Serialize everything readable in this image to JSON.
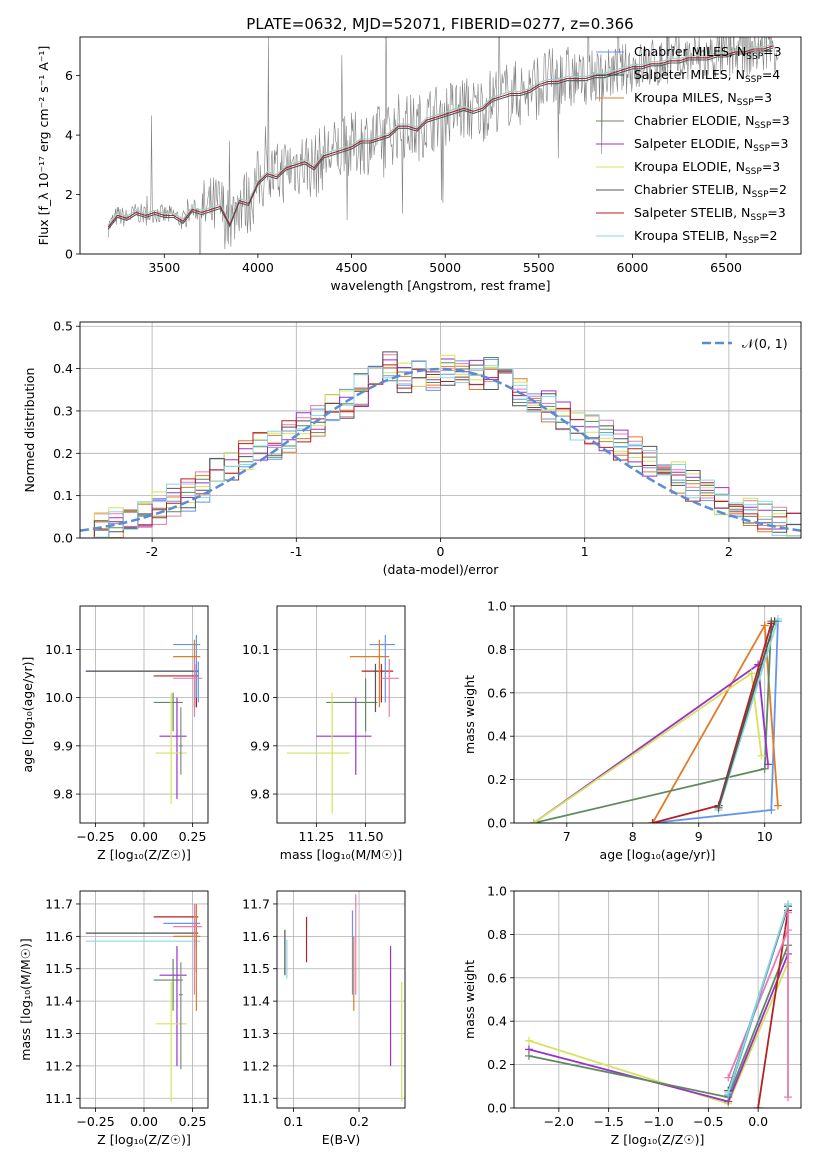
{
  "figure": {
    "title": "PLATE=0632, MJD=52071, FIBERID=0277, z=0.366"
  },
  "models": [
    {
      "name": "Chabrier MILES",
      "nssp": 3,
      "color": "#6495ed"
    },
    {
      "name": "Salpeter MILES",
      "nssp": 4,
      "color": "#2f4f4f"
    },
    {
      "name": "Kroupa MILES",
      "nssp": 3,
      "color": "#e07b28"
    },
    {
      "name": "Chabrier ELODIE",
      "nssp": 3,
      "color": "#5f8a5f"
    },
    {
      "name": "Salpeter ELODIE",
      "nssp": 3,
      "color": "#9932cc"
    },
    {
      "name": "Kroupa ELODIE",
      "nssp": 3,
      "color": "#d4e35a"
    },
    {
      "name": "Chabrier STELIB",
      "nssp": 2,
      "color": "#555555"
    },
    {
      "name": "Salpeter STELIB",
      "nssp": 3,
      "color": "#b22222"
    },
    {
      "name": "Kroupa STELIB",
      "nssp": 2,
      "color": "#88d8e0"
    }
  ],
  "chart_data": [
    {
      "id": "spectrum",
      "type": "line",
      "xlabel": "wavelength [Angstrom, rest frame]",
      "ylabel": "Flux [f_λ 10⁻¹⁷ erg cm⁻² s⁻¹ A⁻¹]",
      "xlim": [
        3050,
        6900
      ],
      "ylim": [
        0,
        7.3
      ],
      "xticks": [
        3500,
        4000,
        4500,
        5000,
        5500,
        6000,
        6500
      ],
      "yticks": [
        0,
        2,
        4,
        6
      ],
      "legend_position": "top-right",
      "data_color": "#808080",
      "model_x": [
        3200,
        3250,
        3300,
        3350,
        3400,
        3450,
        3500,
        3550,
        3600,
        3650,
        3700,
        3750,
        3800,
        3850,
        3900,
        3950,
        4000,
        4050,
        4100,
        4150,
        4200,
        4250,
        4300,
        4350,
        4400,
        4450,
        4500,
        4550,
        4600,
        4650,
        4700,
        4750,
        4800,
        4850,
        4900,
        4950,
        5000,
        5050,
        5100,
        5150,
        5200,
        5250,
        5300,
        5350,
        5400,
        5450,
        5500,
        5550,
        5600,
        5650,
        5700,
        5750,
        5800,
        5850,
        5900,
        5950,
        6000,
        6050,
        6100,
        6150,
        6200,
        6250,
        6300,
        6350,
        6400,
        6450,
        6500,
        6550,
        6600,
        6650,
        6700,
        6750
      ],
      "model_y": [
        0.9,
        1.3,
        1.2,
        1.4,
        1.3,
        1.4,
        1.3,
        1.3,
        1.1,
        1.5,
        1.4,
        1.5,
        1.6,
        1.0,
        1.8,
        1.7,
        2.4,
        2.7,
        2.6,
        2.9,
        3.0,
        3.1,
        2.9,
        3.3,
        3.4,
        3.5,
        3.6,
        3.8,
        3.8,
        3.9,
        4.0,
        4.3,
        4.3,
        4.2,
        4.5,
        4.6,
        4.7,
        4.8,
        4.9,
        4.8,
        4.9,
        5.2,
        5.3,
        5.4,
        5.4,
        5.5,
        5.7,
        5.8,
        5.8,
        5.9,
        5.9,
        5.9,
        6.0,
        6.0,
        6.1,
        6.2,
        6.3,
        6.3,
        6.4,
        6.4,
        6.5,
        6.5,
        6.6,
        6.6,
        6.6,
        6.7,
        6.7,
        6.8,
        6.8,
        6.9,
        6.9,
        7.0
      ]
    },
    {
      "id": "residuals",
      "type": "line",
      "xlabel": "(data-model)/error",
      "ylabel": "Normed distribution",
      "xlim": [
        -2.5,
        2.5
      ],
      "ylim": [
        0,
        0.51
      ],
      "xticks": [
        -2,
        -1,
        0,
        1,
        2
      ],
      "yticks": [
        0.0,
        0.1,
        0.2,
        0.3,
        0.4,
        0.5
      ],
      "legend": "𝒩(0, 1)",
      "legend_position": "top-right",
      "gauss_color": "#5b8bd8",
      "hist_bin_edges": [
        -2.5,
        -2.4,
        -2.3,
        -2.2,
        -2.1,
        -2.0,
        -1.9,
        -1.8,
        -1.7,
        -1.6,
        -1.5,
        -1.4,
        -1.3,
        -1.2,
        -1.1,
        -1.0,
        -0.9,
        -0.8,
        -0.7,
        -0.6,
        -0.5,
        -0.4,
        -0.3,
        -0.2,
        -0.1,
        0.0,
        0.1,
        0.2,
        0.3,
        0.4,
        0.5,
        0.6,
        0.7,
        0.8,
        0.9,
        1.0,
        1.1,
        1.2,
        1.3,
        1.4,
        1.5,
        1.6,
        1.7,
        1.8,
        1.9,
        2.0,
        2.1,
        2.2,
        2.3,
        2.4,
        2.5
      ],
      "hist_mean_heights": [
        0.02,
        0.03,
        0.04,
        0.05,
        0.05,
        0.07,
        0.09,
        0.1,
        0.12,
        0.15,
        0.17,
        0.2,
        0.21,
        0.22,
        0.24,
        0.26,
        0.28,
        0.3,
        0.32,
        0.35,
        0.37,
        0.4,
        0.38,
        0.39,
        0.37,
        0.4,
        0.39,
        0.38,
        0.39,
        0.37,
        0.35,
        0.33,
        0.31,
        0.29,
        0.27,
        0.26,
        0.24,
        0.22,
        0.2,
        0.18,
        0.16,
        0.14,
        0.12,
        0.1,
        0.08,
        0.07,
        0.06,
        0.05,
        0.04,
        0.03
      ]
    },
    {
      "id": "age_vs_Z",
      "type": "scatter",
      "xlabel": "Z [log₁₀(Z/Z☉)]",
      "ylabel": "age  [log₁₀(age/yr)]",
      "xlim": [
        -0.33,
        0.33
      ],
      "ylim": [
        9.74,
        10.19
      ],
      "xticks": [
        -0.25,
        0.0,
        0.25
      ],
      "xticklabels": [
        "−0.25",
        "0.00",
        "0.25"
      ],
      "yticks": [
        9.8,
        9.9,
        10.0,
        10.1
      ],
      "points": [
        {
          "x": 0.28,
          "xlo": -0.3,
          "xhi": 0.28,
          "y": 10.055,
          "ylo": 9.99,
          "yhi": 10.075,
          "c": "#6495ed"
        },
        {
          "x": 0.27,
          "xlo": -0.3,
          "xhi": 0.28,
          "y": 10.055,
          "ylo": 9.98,
          "yhi": 10.07,
          "c": "#555555"
        },
        {
          "x": 0.27,
          "xlo": 0.05,
          "xhi": 0.28,
          "y": 10.045,
          "ylo": 9.98,
          "yhi": 10.07,
          "c": "#b22222"
        },
        {
          "x": 0.27,
          "xlo": 0.15,
          "xhi": 0.29,
          "y": 10.11,
          "ylo": 10.0,
          "yhi": 10.13,
          "c": "#6495ed"
        },
        {
          "x": 0.26,
          "xlo": 0.15,
          "xhi": 0.29,
          "y": 10.085,
          "ylo": 9.98,
          "yhi": 10.12,
          "c": "#e07b28"
        },
        {
          "x": 0.26,
          "xlo": 0.15,
          "xhi": 0.3,
          "y": 10.04,
          "ylo": 9.96,
          "yhi": 10.08,
          "c": "#e87bb0"
        },
        {
          "x": 0.15,
          "xlo": 0.05,
          "xhi": 0.2,
          "y": 9.99,
          "ylo": 9.93,
          "yhi": 10.01,
          "c": "#5f8a5f"
        },
        {
          "x": 0.17,
          "xlo": 0.08,
          "xhi": 0.22,
          "y": 9.92,
          "ylo": 9.79,
          "yhi": 10.0,
          "c": "#9932cc"
        },
        {
          "x": 0.14,
          "xlo": 0.06,
          "xhi": 0.22,
          "y": 9.885,
          "ylo": 9.78,
          "yhi": 10.01,
          "c": "#d4e35a"
        },
        {
          "x": 0.19,
          "xlo": 0.18,
          "xhi": 0.2,
          "y": 9.9,
          "ylo": 9.84,
          "yhi": 9.98,
          "c": "#888888"
        }
      ]
    },
    {
      "id": "age_vs_mass",
      "type": "scatter",
      "xlabel": "mass [log₁₀(M/M☉)]",
      "ylabel": "",
      "xlim": [
        11.05,
        11.7
      ],
      "ylim": [
        9.74,
        10.19
      ],
      "xticks": [
        11.25,
        11.5
      ],
      "xticklabels": [
        "11.25",
        "11.50"
      ],
      "yticks": [
        9.8,
        9.9,
        10.0,
        10.1
      ],
      "points": [
        {
          "x": 11.58,
          "xlo": 11.48,
          "xhi": 11.64,
          "y": 10.055,
          "ylo": 9.99,
          "yhi": 10.07,
          "c": "#b22222"
        },
        {
          "x": 11.6,
          "xlo": 11.52,
          "xhi": 11.65,
          "y": 10.11,
          "ylo": 9.99,
          "yhi": 10.13,
          "c": "#6495ed"
        },
        {
          "x": 11.57,
          "xlo": 11.42,
          "xhi": 11.62,
          "y": 10.085,
          "ylo": 9.98,
          "yhi": 10.12,
          "c": "#e07b28"
        },
        {
          "x": 11.62,
          "xlo": 11.58,
          "xhi": 11.67,
          "y": 10.04,
          "ylo": 9.96,
          "yhi": 10.08,
          "c": "#e87bb0"
        },
        {
          "x": 11.5,
          "xlo": 11.3,
          "xhi": 11.56,
          "y": 9.99,
          "ylo": 9.93,
          "yhi": 10.04,
          "c": "#5f8a5f"
        },
        {
          "x": 11.45,
          "xlo": 11.25,
          "xhi": 11.53,
          "y": 9.92,
          "ylo": 9.84,
          "yhi": 10.0,
          "c": "#9932cc"
        },
        {
          "x": 11.33,
          "xlo": 11.1,
          "xhi": 11.42,
          "y": 9.885,
          "ylo": 9.76,
          "yhi": 10.01,
          "c": "#d4e35a"
        },
        {
          "x": 11.55,
          "xlo": 11.54,
          "xhi": 11.56,
          "y": 10.055,
          "ylo": 9.97,
          "yhi": 10.07,
          "c": "#555555"
        }
      ]
    },
    {
      "id": "mass_weight_vs_age",
      "type": "line",
      "xlabel": "age  [log₁₀(age/yr)]",
      "ylabel": "mass weight",
      "xlim": [
        6.2,
        10.55
      ],
      "ylim": [
        0,
        1.0
      ],
      "xticks": [
        7,
        8,
        9,
        10
      ],
      "yticks": [
        0.0,
        0.2,
        0.4,
        0.6,
        0.8,
        1.0
      ],
      "series": [
        {
          "c": "#6495ed",
          "x": [
            8.3,
            10.1,
            10.2
          ],
          "y": [
            0.0,
            0.06,
            0.93
          ]
        },
        {
          "c": "#e07b28",
          "x": [
            8.3,
            10.0,
            10.2
          ],
          "y": [
            0.0,
            0.91,
            0.08
          ]
        },
        {
          "c": "#5f8a5f",
          "x": [
            6.5,
            10.0,
            10.1
          ],
          "y": [
            0.0,
            0.25,
            0.93
          ]
        },
        {
          "c": "#9932cc",
          "x": [
            6.5,
            9.9,
            10.05
          ],
          "y": [
            0.0,
            0.73,
            0.27
          ]
        },
        {
          "c": "#d4e35a",
          "x": [
            6.5,
            9.8,
            9.95
          ],
          "y": [
            0.0,
            0.69,
            0.31
          ]
        },
        {
          "c": "#b22222",
          "x": [
            8.3,
            9.3,
            10.1
          ],
          "y": [
            0.0,
            0.08,
            0.92
          ]
        },
        {
          "c": "#88d8e0",
          "x": [
            9.3,
            10.2
          ],
          "y": [
            0.06,
            0.94
          ]
        },
        {
          "c": "#555555",
          "x": [
            9.3,
            10.15
          ],
          "y": [
            0.07,
            0.93
          ]
        }
      ]
    },
    {
      "id": "mass_vs_Z",
      "type": "scatter",
      "xlabel": "Z [log₁₀(Z/Z☉)]",
      "ylabel": "mass [log₁₀(M/M☉)]",
      "xlim": [
        -0.33,
        0.33
      ],
      "ylim": [
        11.07,
        11.74
      ],
      "xticks": [
        -0.25,
        0.0,
        0.25
      ],
      "xticklabels": [
        "−0.25",
        "0.00",
        "0.25"
      ],
      "yticks": [
        11.1,
        11.2,
        11.3,
        11.4,
        11.5,
        11.6,
        11.7
      ],
      "points": [
        {
          "x": 0.27,
          "xlo": -0.3,
          "xhi": 0.28,
          "y": 11.61,
          "ylo": 11.49,
          "yhi": 11.68,
          "c": "#555555"
        },
        {
          "x": 0.26,
          "xlo": -0.3,
          "xhi": 0.29,
          "y": 11.585,
          "ylo": 11.5,
          "yhi": 11.64,
          "c": "#88d8e0"
        },
        {
          "x": 0.27,
          "xlo": 0.05,
          "xhi": 0.28,
          "y": 11.66,
          "ylo": 11.56,
          "yhi": 11.7,
          "c": "#b22222"
        },
        {
          "x": 0.27,
          "xlo": 0.1,
          "xhi": 0.29,
          "y": 11.64,
          "ylo": 11.55,
          "yhi": 11.69,
          "c": "#6495ed"
        },
        {
          "x": 0.27,
          "xlo": 0.15,
          "xhi": 0.29,
          "y": 11.6,
          "ylo": 11.37,
          "yhi": 11.7,
          "c": "#e07b28"
        },
        {
          "x": 0.26,
          "xlo": 0.15,
          "xhi": 0.3,
          "y": 11.63,
          "ylo": 11.42,
          "yhi": 11.7,
          "c": "#e87bb0"
        },
        {
          "x": 0.15,
          "xlo": 0.05,
          "xhi": 0.2,
          "y": 11.465,
          "ylo": 11.37,
          "yhi": 11.53,
          "c": "#5f8a5f"
        },
        {
          "x": 0.17,
          "xlo": 0.08,
          "xhi": 0.22,
          "y": 11.48,
          "ylo": 11.2,
          "yhi": 11.57,
          "c": "#9932cc"
        },
        {
          "x": 0.14,
          "xlo": 0.06,
          "xhi": 0.22,
          "y": 11.33,
          "ylo": 11.09,
          "yhi": 11.46,
          "c": "#d4e35a"
        },
        {
          "x": 0.19,
          "xlo": 0.18,
          "xhi": 0.2,
          "y": 11.42,
          "ylo": 11.19,
          "yhi": 11.52,
          "c": "#888888"
        }
      ]
    },
    {
      "id": "mass_vs_EBV",
      "type": "scatter",
      "xlabel": "E(B-V)",
      "ylabel": "",
      "xlim": [
        0.075,
        0.27
      ],
      "ylim": [
        11.07,
        11.74
      ],
      "xticks": [
        0.1,
        0.2
      ],
      "xticklabels": [
        "0.1",
        "0.2"
      ],
      "yticks": [
        11.1,
        11.2,
        11.3,
        11.4,
        11.5,
        11.6,
        11.7
      ],
      "points": [
        {
          "x": 0.087,
          "ylo": 11.48,
          "yhi": 11.62,
          "c": "#555555"
        },
        {
          "x": 0.09,
          "ylo": 11.47,
          "yhi": 11.59,
          "c": "#88d8e0"
        },
        {
          "x": 0.12,
          "ylo": 11.52,
          "yhi": 11.66,
          "c": "#b22222"
        },
        {
          "x": 0.19,
          "ylo": 11.42,
          "yhi": 11.68,
          "c": "#6495ed"
        },
        {
          "x": 0.192,
          "ylo": 11.37,
          "yhi": 11.6,
          "c": "#e07b28"
        },
        {
          "x": 0.195,
          "ylo": 11.42,
          "yhi": 11.73,
          "c": "#e87bb0"
        },
        {
          "x": 0.248,
          "ylo": 11.2,
          "yhi": 11.57,
          "c": "#9932cc"
        },
        {
          "x": 0.265,
          "ylo": 11.09,
          "yhi": 11.46,
          "c": "#d4e35a"
        }
      ]
    },
    {
      "id": "mass_weight_vs_Z",
      "type": "line",
      "xlabel": "Z [log₁₀(Z/Z☉)]",
      "ylabel": "mass weight",
      "xlim": [
        -2.45,
        0.43
      ],
      "ylim": [
        0,
        1.0
      ],
      "xticks": [
        -2.0,
        -1.5,
        -1.0,
        -0.5,
        0.0
      ],
      "xticklabels": [
        "−2.0",
        "−1.5",
        "−1.0",
        "−0.5",
        "0.0"
      ],
      "yticks": [
        0.0,
        0.2,
        0.4,
        0.6,
        0.8,
        1.0
      ],
      "series": [
        {
          "c": "#d4e35a",
          "x": [
            -2.3,
            -0.3,
            0.3
          ],
          "y": [
            0.31,
            0.02,
            0.67
          ]
        },
        {
          "c": "#9932cc",
          "x": [
            -2.3,
            -0.3,
            0.3
          ],
          "y": [
            0.27,
            0.03,
            0.71
          ]
        },
        {
          "c": "#5f8a5f",
          "x": [
            -2.3,
            -0.3,
            0.3
          ],
          "y": [
            0.24,
            0.05,
            0.75
          ]
        },
        {
          "c": "#b22222",
          "x": [
            0.0,
            0.3
          ],
          "y": [
            0.0,
            0.91
          ]
        },
        {
          "c": "#e87bb0",
          "x": [
            -0.3,
            0.3
          ],
          "y": [
            0.14,
            0.82
          ]
        },
        {
          "c": "#6495ed",
          "x": [
            -0.3,
            0.3
          ],
          "y": [
            0.06,
            0.93
          ]
        },
        {
          "c": "#555555",
          "x": [
            -0.3,
            0.3
          ],
          "y": [
            0.08,
            0.93
          ]
        },
        {
          "c": "#88d8e0",
          "x": [
            -0.3,
            0.3
          ],
          "y": [
            0.07,
            0.94
          ]
        },
        {
          "c": "#e87bb0",
          "x": [
            0.3,
            0.3
          ],
          "y": [
            0.05,
            0.9
          ]
        }
      ]
    }
  ]
}
